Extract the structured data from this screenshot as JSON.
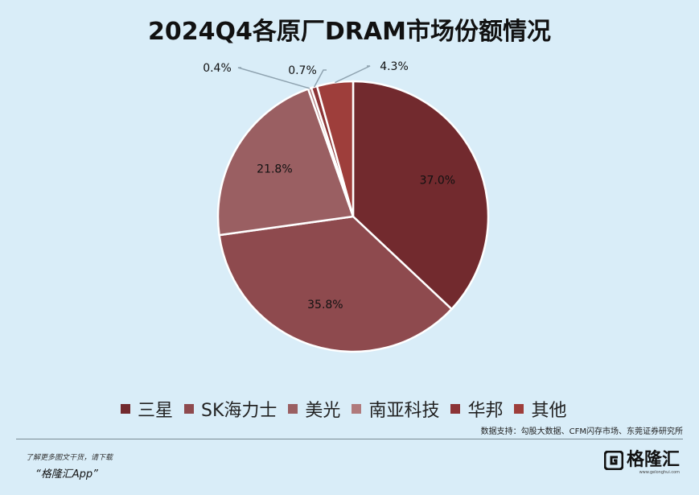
{
  "title": "2024Q4各原厂DRAM市场份额情况",
  "chart_data": {
    "type": "pie",
    "title": "2024Q4各原厂DRAM市场份额情况",
    "slices": [
      {
        "name": "三星",
        "value": 37.0,
        "label": "37.0%",
        "color": "#722a2e"
      },
      {
        "name": "SK海力士",
        "value": 35.8,
        "label": "35.8%",
        "color": "#8e4a4e"
      },
      {
        "name": "美光",
        "value": 21.8,
        "label": "21.8%",
        "color": "#9a5f62"
      },
      {
        "name": "南亚科技",
        "value": 0.4,
        "label": "0.4%",
        "color": "#b07a7c"
      },
      {
        "name": "华邦",
        "value": 0.7,
        "label": "0.7%",
        "color": "#8c3436"
      },
      {
        "name": "其他",
        "value": 4.3,
        "label": "4.3%",
        "color": "#9e3e3b"
      }
    ],
    "legend_position": "bottom"
  },
  "source": "数据支持：勾股大数据、CFM闪存市场、东莞证券研究所",
  "watermark": {
    "left": "格隆汇",
    "right": "勾股大数据"
  },
  "footer": {
    "line1": "了解更多图文干货，请下载",
    "line2": "“格隆汇App”"
  },
  "brand": {
    "name": "格隆汇",
    "url": "www.gelonghui.com"
  }
}
